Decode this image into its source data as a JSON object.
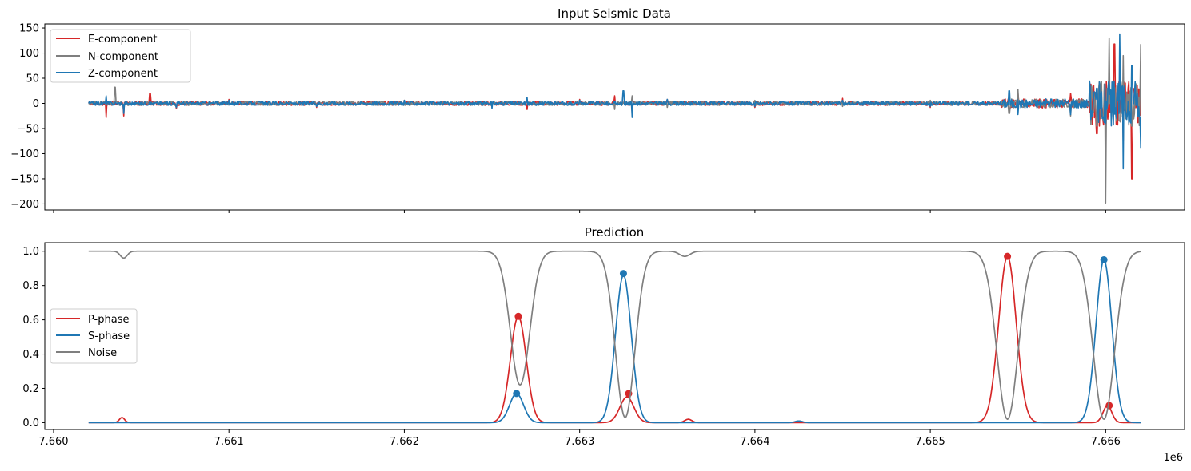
{
  "figure": {
    "offset_text": "1e6"
  },
  "chart_data": [
    {
      "type": "line",
      "title": "Input Seismic Data",
      "xlabel": "",
      "ylabel": "",
      "xlim": [
        7659950,
        7666450
      ],
      "ylim": [
        -212,
        158
      ],
      "yticks": [
        -200,
        -150,
        -100,
        -50,
        0,
        50,
        100,
        150
      ],
      "ytick_labels": [
        "−200",
        "−150",
        "−100",
        "−50",
        "0",
        "50",
        "100",
        "150"
      ],
      "xticks": [
        7660000,
        7661000,
        7662000,
        7663000,
        7664000,
        7665000,
        7666000
      ],
      "xtick_labels_visible": false,
      "x_range": [
        7660200,
        7666200
      ],
      "grid": false,
      "legend_position": "top-left",
      "series": [
        {
          "name": "E-component",
          "color": "#d62728",
          "points": [
            [
              7660200,
              0
            ],
            [
              7660300,
              -28
            ],
            [
              7660400,
              -25
            ],
            [
              7660550,
              20
            ],
            [
              7660700,
              -10
            ],
            [
              7661000,
              8
            ],
            [
              7661500,
              -8
            ],
            [
              7662000,
              6
            ],
            [
              7662500,
              -6
            ],
            [
              7662700,
              -12
            ],
            [
              7663000,
              8
            ],
            [
              7663200,
              15
            ],
            [
              7663300,
              -18
            ],
            [
              7663500,
              8
            ],
            [
              7664000,
              -8
            ],
            [
              7664500,
              10
            ],
            [
              7665000,
              -8
            ],
            [
              7665450,
              -10
            ],
            [
              7665500,
              20
            ],
            [
              7665800,
              20
            ],
            [
              7665950,
              -60
            ],
            [
              7666000,
              -75
            ],
            [
              7666050,
              118
            ],
            [
              7666100,
              -75
            ],
            [
              7666150,
              -150
            ],
            [
              7666200,
              85
            ]
          ]
        },
        {
          "name": "N-component",
          "color": "#7f7f7f",
          "points": [
            [
              7660200,
              0
            ],
            [
              7660350,
              32
            ],
            [
              7660400,
              -10
            ],
            [
              7660700,
              -8
            ],
            [
              7661000,
              6
            ],
            [
              7661500,
              -6
            ],
            [
              7662000,
              6
            ],
            [
              7662500,
              -6
            ],
            [
              7662700,
              8
            ],
            [
              7663000,
              6
            ],
            [
              7663200,
              -12
            ],
            [
              7663300,
              15
            ],
            [
              7663500,
              -8
            ],
            [
              7664000,
              6
            ],
            [
              7664500,
              -6
            ],
            [
              7665000,
              6
            ],
            [
              7665450,
              -20
            ],
            [
              7665500,
              28
            ],
            [
              7665800,
              -25
            ],
            [
              7665950,
              -45
            ],
            [
              7666000,
              -198
            ],
            [
              7666020,
              130
            ],
            [
              7666100,
              95
            ],
            [
              7666150,
              -45
            ],
            [
              7666200,
              118
            ]
          ]
        },
        {
          "name": "Z-component",
          "color": "#1f77b4",
          "points": [
            [
              7660200,
              0
            ],
            [
              7660300,
              15
            ],
            [
              7660400,
              -20
            ],
            [
              7660700,
              -8
            ],
            [
              7661000,
              6
            ],
            [
              7661500,
              -6
            ],
            [
              7662000,
              6
            ],
            [
              7662500,
              -10
            ],
            [
              7662700,
              12
            ],
            [
              7663000,
              6
            ],
            [
              7663250,
              25
            ],
            [
              7663300,
              -28
            ],
            [
              7663500,
              8
            ],
            [
              7664000,
              -6
            ],
            [
              7664500,
              6
            ],
            [
              7665000,
              -6
            ],
            [
              7665450,
              25
            ],
            [
              7665500,
              -22
            ],
            [
              7665800,
              -22
            ],
            [
              7665950,
              30
            ],
            [
              7666000,
              -40
            ],
            [
              7666080,
              138
            ],
            [
              7666100,
              -130
            ],
            [
              7666150,
              75
            ],
            [
              7666200,
              -90
            ]
          ]
        }
      ]
    },
    {
      "type": "line",
      "title": "Prediction",
      "xlabel": "",
      "ylabel": "",
      "xlim": [
        7659950,
        7666450
      ],
      "ylim": [
        -0.04,
        1.05
      ],
      "yticks": [
        0.0,
        0.2,
        0.4,
        0.6,
        0.8,
        1.0
      ],
      "ytick_labels": [
        "0.0",
        "0.2",
        "0.4",
        "0.6",
        "0.8",
        "1.0"
      ],
      "xticks": [
        7660000,
        7661000,
        7662000,
        7663000,
        7664000,
        7665000,
        7666000
      ],
      "xtick_labels": [
        "7.660",
        "7.661",
        "7.662",
        "7.663",
        "7.664",
        "7.665",
        "7.666"
      ],
      "x_range": [
        7660200,
        7666200
      ],
      "grid": false,
      "legend_position": "center-left",
      "series": [
        {
          "name": "P-phase",
          "color": "#d62728",
          "peaks": [
            {
              "x": 7660390,
              "y": 0.03,
              "w": 15
            },
            {
              "x": 7662650,
              "y": 0.62,
              "w": 45
            },
            {
              "x": 7663270,
              "y": 0.15,
              "w": 40
            },
            {
              "x": 7663620,
              "y": 0.02,
              "w": 20
            },
            {
              "x": 7665440,
              "y": 0.97,
              "w": 50
            },
            {
              "x": 7666010,
              "y": 0.1,
              "w": 25
            }
          ],
          "markers": [
            {
              "x": 7662650,
              "y": 0.62
            },
            {
              "x": 7663280,
              "y": 0.17
            },
            {
              "x": 7665440,
              "y": 0.97
            },
            {
              "x": 7666020,
              "y": 0.1
            }
          ]
        },
        {
          "name": "S-phase",
          "color": "#1f77b4",
          "peaks": [
            {
              "x": 7662640,
              "y": 0.17,
              "w": 40
            },
            {
              "x": 7663250,
              "y": 0.86,
              "w": 45
            },
            {
              "x": 7664250,
              "y": 0.01,
              "w": 20
            },
            {
              "x": 7665990,
              "y": 0.95,
              "w": 45
            }
          ],
          "markers": [
            {
              "x": 7662640,
              "y": 0.17
            },
            {
              "x": 7663250,
              "y": 0.87
            },
            {
              "x": 7665990,
              "y": 0.95
            }
          ]
        },
        {
          "name": "Noise",
          "color": "#7f7f7f",
          "baseline": 1.0,
          "dips": [
            {
              "x": 7660400,
              "y": 0.96,
              "w": 20
            },
            {
              "x": 7662660,
              "y": 0.22,
              "w": 55
            },
            {
              "x": 7663260,
              "y": 0.03,
              "w": 55
            },
            {
              "x": 7663600,
              "y": 0.97,
              "w": 30
            },
            {
              "x": 7665440,
              "y": 0.02,
              "w": 60
            },
            {
              "x": 7665990,
              "y": 0.02,
              "w": 60
            }
          ]
        }
      ]
    }
  ]
}
